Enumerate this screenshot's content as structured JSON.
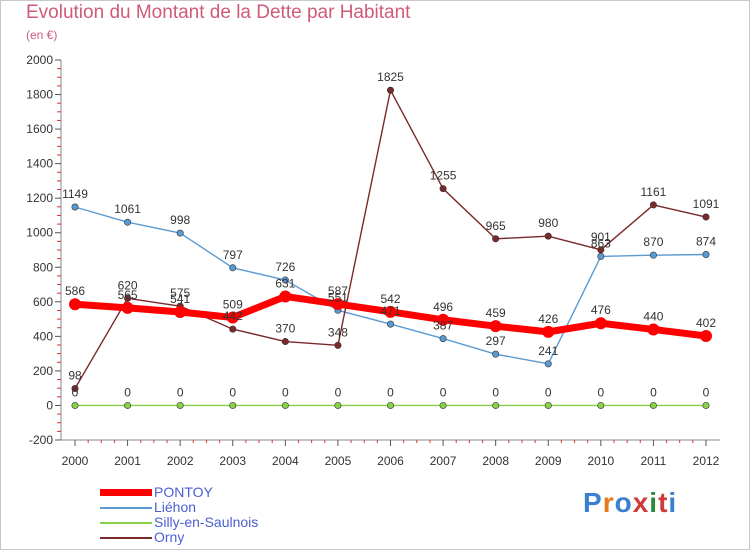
{
  "title": "Evolution du Montant de la Dette par Habitant",
  "subtitle": "(en €)",
  "logo": {
    "text": "Proxiti",
    "letter_colors": [
      "#3a7fd0",
      "#e57a1e",
      "#3a7fd0",
      "#d03a3a",
      "#2a8a3a",
      "#d03a3a",
      "#3a7fd0"
    ]
  },
  "chart_data": {
    "type": "line",
    "title": "Evolution du Montant de la Dette par Habitant",
    "subtitle": "(en €)",
    "x": [
      "2000",
      "2001",
      "2002",
      "2003",
      "2004",
      "2005",
      "2006",
      "2007",
      "2008",
      "2009",
      "2010",
      "2011",
      "2012"
    ],
    "ylim": [
      -200,
      2000
    ],
    "yticks": [
      -200,
      0,
      200,
      400,
      600,
      800,
      1000,
      1200,
      1400,
      1600,
      1800,
      2000
    ],
    "grid": false,
    "legend_position": "bottom-left",
    "series": [
      {
        "name": "PONTOY",
        "color": "#ff0000",
        "values": [
          586,
          565,
          541,
          509,
          631,
          587,
          542,
          496,
          459,
          426,
          476,
          440,
          402
        ],
        "labels": [
          "586",
          "565",
          "541",
          "509",
          "631",
          "587",
          "542",
          "496",
          "459",
          "426",
          "476",
          "440",
          "402"
        ],
        "emphasis": true
      },
      {
        "name": "Liéhon",
        "color": "#5a9ad2",
        "values": [
          1149,
          1061,
          998,
          797,
          726,
          551,
          471,
          387,
          297,
          241,
          863,
          870,
          874
        ],
        "labels": [
          "1149",
          "1061",
          "998",
          "797",
          "726",
          "551",
          "471",
          "387",
          "297",
          "241",
          "863",
          "870",
          "874"
        ],
        "emphasis": false
      },
      {
        "name": "Silly-en-Saulnois",
        "color": "#88d048",
        "values": [
          0,
          0,
          0,
          0,
          0,
          0,
          0,
          0,
          0,
          0,
          0,
          0,
          0
        ],
        "labels": [
          "0",
          "0",
          "0",
          "0",
          "0",
          "0",
          "0",
          "0",
          "0",
          "0",
          "0",
          "0",
          "0"
        ],
        "emphasis": false
      },
      {
        "name": "Orny",
        "color": "#7a2a2a",
        "values": [
          98,
          620,
          575,
          442,
          370,
          348,
          1825,
          1255,
          965,
          980,
          901,
          1161,
          1091
        ],
        "labels": [
          "98",
          "620",
          "575",
          "442",
          "370",
          "348",
          "1825",
          "1255",
          "965",
          "980",
          "901",
          "1161",
          "1091"
        ],
        "emphasis": false
      }
    ]
  }
}
